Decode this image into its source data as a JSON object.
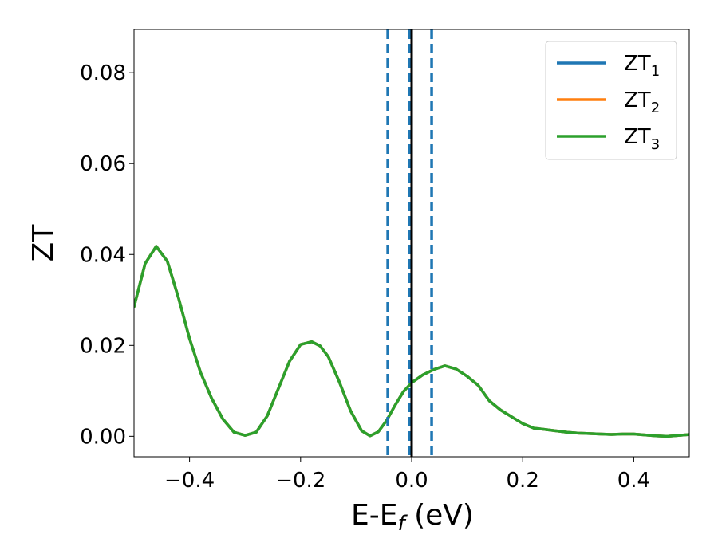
{
  "chart_data": {
    "type": "line",
    "xlabel": "E-E",
    "xlabel_sub": "f",
    "xlabel_unit": " (eV)",
    "ylabel": "ZT",
    "xlim": [
      -0.5,
      0.5
    ],
    "ylim": [
      -0.0045,
      0.0895
    ],
    "xticks": [
      -0.4,
      -0.2,
      0.0,
      0.2,
      0.4
    ],
    "xtick_labels": [
      "−0.4",
      "−0.2",
      "0.0",
      "0.2",
      "0.4"
    ],
    "yticks": [
      0.0,
      0.02,
      0.04,
      0.06,
      0.08
    ],
    "ytick_labels": [
      "0.00",
      "0.02",
      "0.04",
      "0.06",
      "0.08"
    ],
    "grid": false,
    "legend_position": "top-right",
    "series": [
      {
        "name": "ZT",
        "sub": "1",
        "color": "#1f77b4",
        "z": 1,
        "x": [
          -0.5,
          -0.48,
          -0.46,
          -0.44,
          -0.42,
          -0.4,
          -0.38,
          -0.36,
          -0.34,
          -0.32,
          -0.3,
          -0.28,
          -0.26,
          -0.24,
          -0.22,
          -0.2,
          -0.18,
          -0.165,
          -0.15,
          -0.13,
          -0.11,
          -0.09,
          -0.075,
          -0.06,
          -0.045,
          -0.03,
          -0.015,
          0.0,
          0.02,
          0.04,
          0.06,
          0.08,
          0.1,
          0.12,
          0.14,
          0.16,
          0.18,
          0.2,
          0.22,
          0.24,
          0.26,
          0.28,
          0.3,
          0.32,
          0.34,
          0.36,
          0.38,
          0.4,
          0.42,
          0.44,
          0.46,
          0.48,
          0.5
        ],
        "y": [
          0.0285,
          0.038,
          0.0418,
          0.0385,
          0.0305,
          0.0215,
          0.014,
          0.0083,
          0.0038,
          0.0009,
          0.0002,
          0.0009,
          0.0045,
          0.0105,
          0.0165,
          0.0202,
          0.0208,
          0.0199,
          0.0175,
          0.0119,
          0.0056,
          0.0012,
          0.0001,
          0.001,
          0.0035,
          0.0068,
          0.0098,
          0.0118,
          0.0135,
          0.0147,
          0.0155,
          0.0148,
          0.0132,
          0.0112,
          0.0078,
          0.0058,
          0.0043,
          0.0028,
          0.0018,
          0.0015,
          0.0012,
          0.0009,
          0.0007,
          0.0006,
          0.0005,
          0.0004,
          0.0005,
          0.0005,
          0.0003,
          0.0001,
          0.0,
          0.0002,
          0.0004
        ]
      },
      {
        "name": "ZT",
        "sub": "2",
        "color": "#ff7f0e",
        "z": 2,
        "x": [
          -0.5,
          -0.48,
          -0.46,
          -0.44,
          -0.42,
          -0.4,
          -0.38,
          -0.36,
          -0.34,
          -0.32,
          -0.3,
          -0.28,
          -0.26,
          -0.24,
          -0.22,
          -0.2,
          -0.18,
          -0.165,
          -0.15,
          -0.13,
          -0.11,
          -0.09,
          -0.075,
          -0.06,
          -0.045,
          -0.03,
          -0.015,
          0.0,
          0.02,
          0.04,
          0.06,
          0.08,
          0.1,
          0.12,
          0.14,
          0.16,
          0.18,
          0.2,
          0.22,
          0.24,
          0.26,
          0.28,
          0.3,
          0.32,
          0.34,
          0.36,
          0.38,
          0.4,
          0.42,
          0.44,
          0.46,
          0.48,
          0.5
        ],
        "y": [
          0.0285,
          0.038,
          0.0418,
          0.0385,
          0.0305,
          0.0215,
          0.014,
          0.0083,
          0.0038,
          0.0009,
          0.0002,
          0.0009,
          0.0045,
          0.0105,
          0.0165,
          0.0202,
          0.0208,
          0.0199,
          0.0175,
          0.0119,
          0.0056,
          0.0012,
          0.0001,
          0.001,
          0.0035,
          0.0068,
          0.0098,
          0.0118,
          0.0135,
          0.0147,
          0.0155,
          0.0148,
          0.0132,
          0.0112,
          0.0078,
          0.0058,
          0.0043,
          0.0028,
          0.0018,
          0.0015,
          0.0012,
          0.0009,
          0.0007,
          0.0006,
          0.0005,
          0.0004,
          0.0005,
          0.0005,
          0.0003,
          0.0001,
          0.0,
          0.0002,
          0.0004
        ]
      },
      {
        "name": "ZT",
        "sub": "3",
        "color": "#2ca02c",
        "z": 3,
        "x": [
          -0.5,
          -0.48,
          -0.46,
          -0.44,
          -0.42,
          -0.4,
          -0.38,
          -0.36,
          -0.34,
          -0.32,
          -0.3,
          -0.28,
          -0.26,
          -0.24,
          -0.22,
          -0.2,
          -0.18,
          -0.165,
          -0.15,
          -0.13,
          -0.11,
          -0.09,
          -0.075,
          -0.06,
          -0.045,
          -0.03,
          -0.015,
          0.0,
          0.02,
          0.04,
          0.06,
          0.08,
          0.1,
          0.12,
          0.14,
          0.16,
          0.18,
          0.2,
          0.22,
          0.24,
          0.26,
          0.28,
          0.3,
          0.32,
          0.34,
          0.36,
          0.38,
          0.4,
          0.42,
          0.44,
          0.46,
          0.48,
          0.5
        ],
        "y": [
          0.0285,
          0.038,
          0.0418,
          0.0385,
          0.0305,
          0.0215,
          0.014,
          0.0083,
          0.0038,
          0.0009,
          0.0002,
          0.0009,
          0.0045,
          0.0105,
          0.0165,
          0.0202,
          0.0208,
          0.0199,
          0.0175,
          0.0119,
          0.0056,
          0.0012,
          0.0001,
          0.001,
          0.0035,
          0.0068,
          0.0098,
          0.0118,
          0.0135,
          0.0147,
          0.0155,
          0.0148,
          0.0132,
          0.0112,
          0.0078,
          0.0058,
          0.0043,
          0.0028,
          0.0018,
          0.0015,
          0.0012,
          0.0009,
          0.0007,
          0.0006,
          0.0005,
          0.0004,
          0.0005,
          0.0005,
          0.0003,
          0.0001,
          0.0,
          0.0002,
          0.0004
        ]
      }
    ],
    "vlines": [
      {
        "x": -0.043,
        "style": "dashed",
        "color": "#1f77b4"
      },
      {
        "x": -0.004,
        "style": "dashed",
        "color": "#1f77b4"
      },
      {
        "x": 0.036,
        "style": "dashed",
        "color": "#1f77b4"
      },
      {
        "x": 0.0,
        "style": "solid",
        "color": "#000000"
      }
    ]
  }
}
